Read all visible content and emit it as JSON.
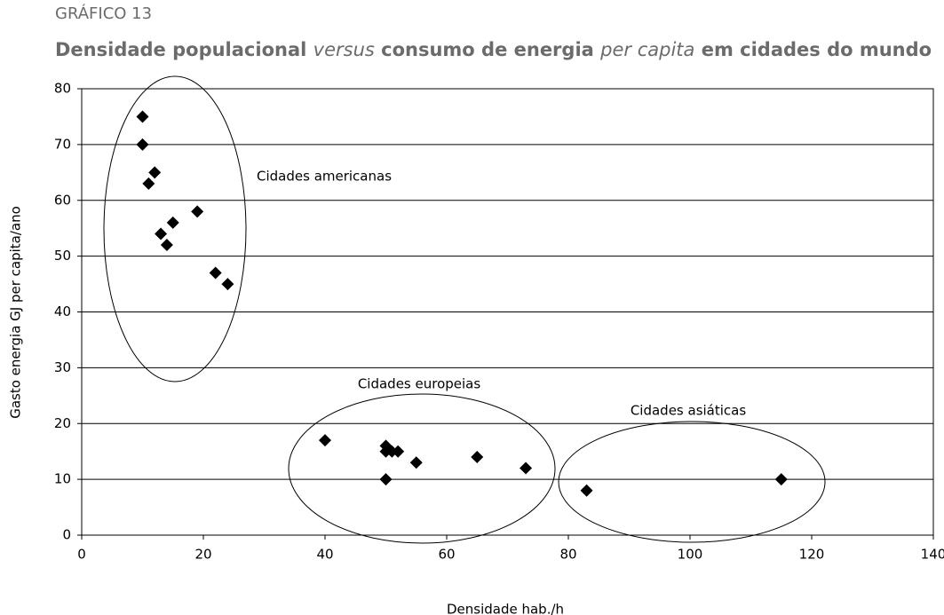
{
  "chart_data": {
    "type": "scatter",
    "supertitle": "GRÁFICO 13",
    "title": [
      {
        "text": "Densidade populacional",
        "italic": false
      },
      {
        "text": "versus",
        "italic": true
      },
      {
        "text": "consumo de energia",
        "italic": false
      },
      {
        "text": "per capita",
        "italic": true
      },
      {
        "text": "em cidades do mundo",
        "italic": false
      }
    ],
    "x_label": "Densidade hab./h",
    "y_label": "Gasto energia GJ per capita/ano",
    "annotations": [
      "Cidades americanas",
      "Cidades europeias",
      "Cidades asiáticas"
    ],
    "series": [
      {
        "color": "#000000",
        "x": [
          10,
          10,
          12,
          11,
          19,
          15,
          13,
          14,
          22,
          24,
          40,
          50,
          50,
          51,
          52,
          55,
          65,
          73,
          50,
          83,
          115
        ],
        "values": [
          75,
          70,
          65,
          63,
          58,
          56,
          54,
          52,
          47,
          45,
          17,
          16,
          15,
          15,
          15,
          13,
          14,
          12,
          10,
          8,
          10
        ]
      }
    ],
    "xlim": [
      0,
      140
    ],
    "xticks": [
      0,
      20,
      40,
      60,
      80,
      100,
      120,
      140
    ],
    "ylim": [
      0,
      80
    ],
    "yticks": [
      0,
      10,
      20,
      30,
      40,
      50,
      60,
      70,
      80
    ],
    "grid": true
  }
}
